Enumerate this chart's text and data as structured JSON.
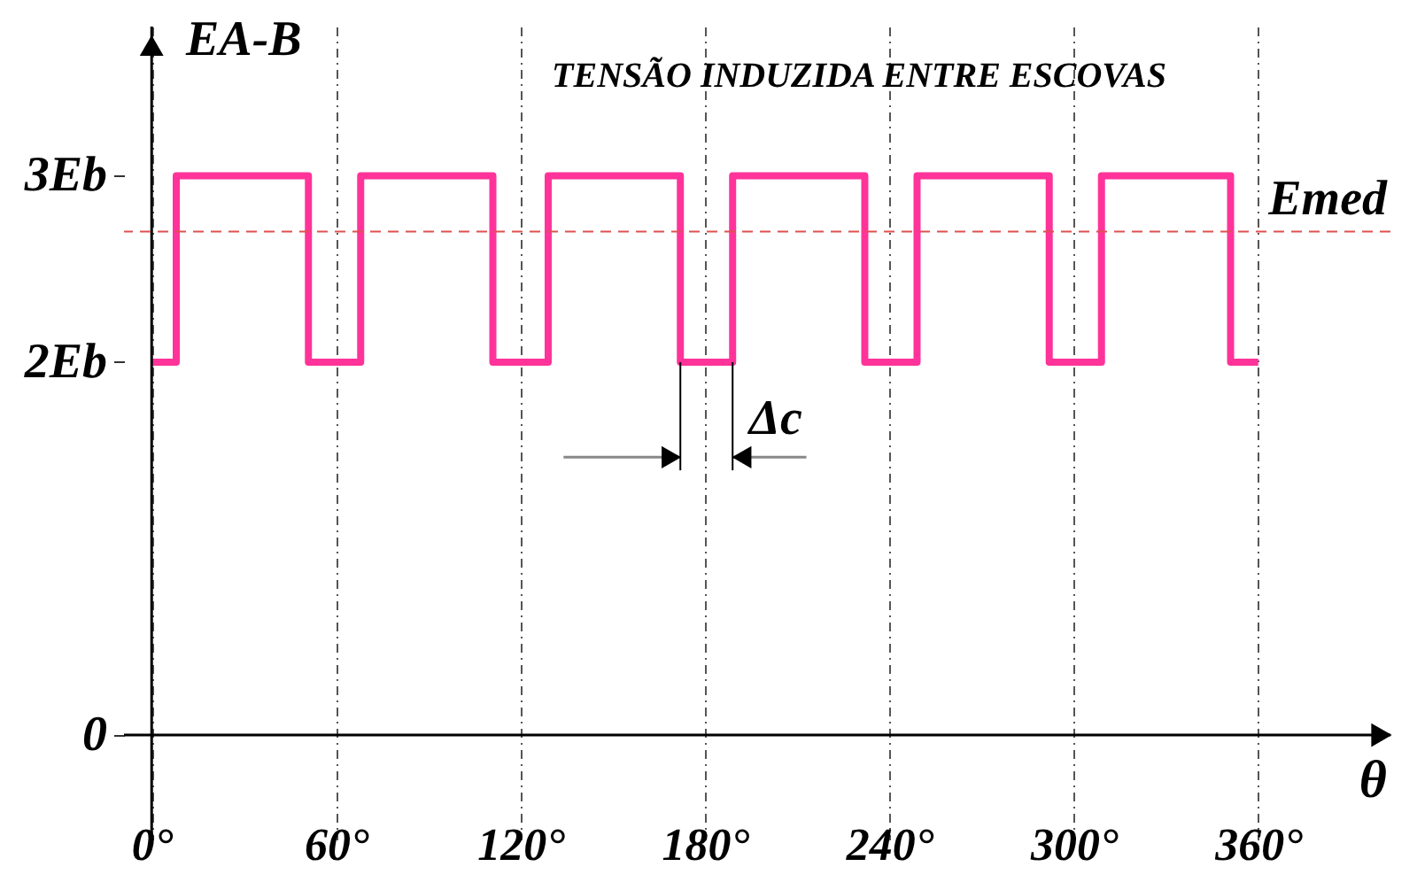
{
  "chart_data": {
    "type": "step",
    "title": "TENSÃO INDUZIDA ENTRE ESCOVAS",
    "xlabel": "θ",
    "ylabel": "EA-B",
    "x": [
      0,
      8,
      51,
      68,
      111,
      129,
      172,
      189,
      232,
      249,
      292,
      309,
      351,
      360
    ],
    "series": [
      {
        "color": "#ff3399",
        "values": [
          2,
          3,
          2,
          3,
          2,
          3,
          2,
          3,
          2,
          3,
          2,
          3,
          2,
          2
        ]
      }
    ],
    "xlim": [
      -9,
      403
    ],
    "ylim": [
      -0.56,
      3.8
    ],
    "xticks": [
      {
        "value": 0,
        "label": "0°"
      },
      {
        "value": 60,
        "label": "60°"
      },
      {
        "value": 120,
        "label": "120°"
      },
      {
        "value": 180,
        "label": "180°"
      },
      {
        "value": 240,
        "label": "240°"
      },
      {
        "value": 300,
        "label": "300°"
      },
      {
        "value": 360,
        "label": "360°"
      }
    ],
    "yticks": [
      0,
      {
        "value": 2,
        "label": "2Eb"
      },
      {
        "value": 3,
        "label": "3Eb"
      }
    ],
    "ref_lines": [
      {
        "axis": "y",
        "value": 2.7,
        "label": "Emed",
        "color": "#e05050",
        "line_style": "dashed"
      }
    ],
    "annotations": [
      "Δc"
    ],
    "grid": "x",
    "marker": "none",
    "line_style": "solid"
  }
}
